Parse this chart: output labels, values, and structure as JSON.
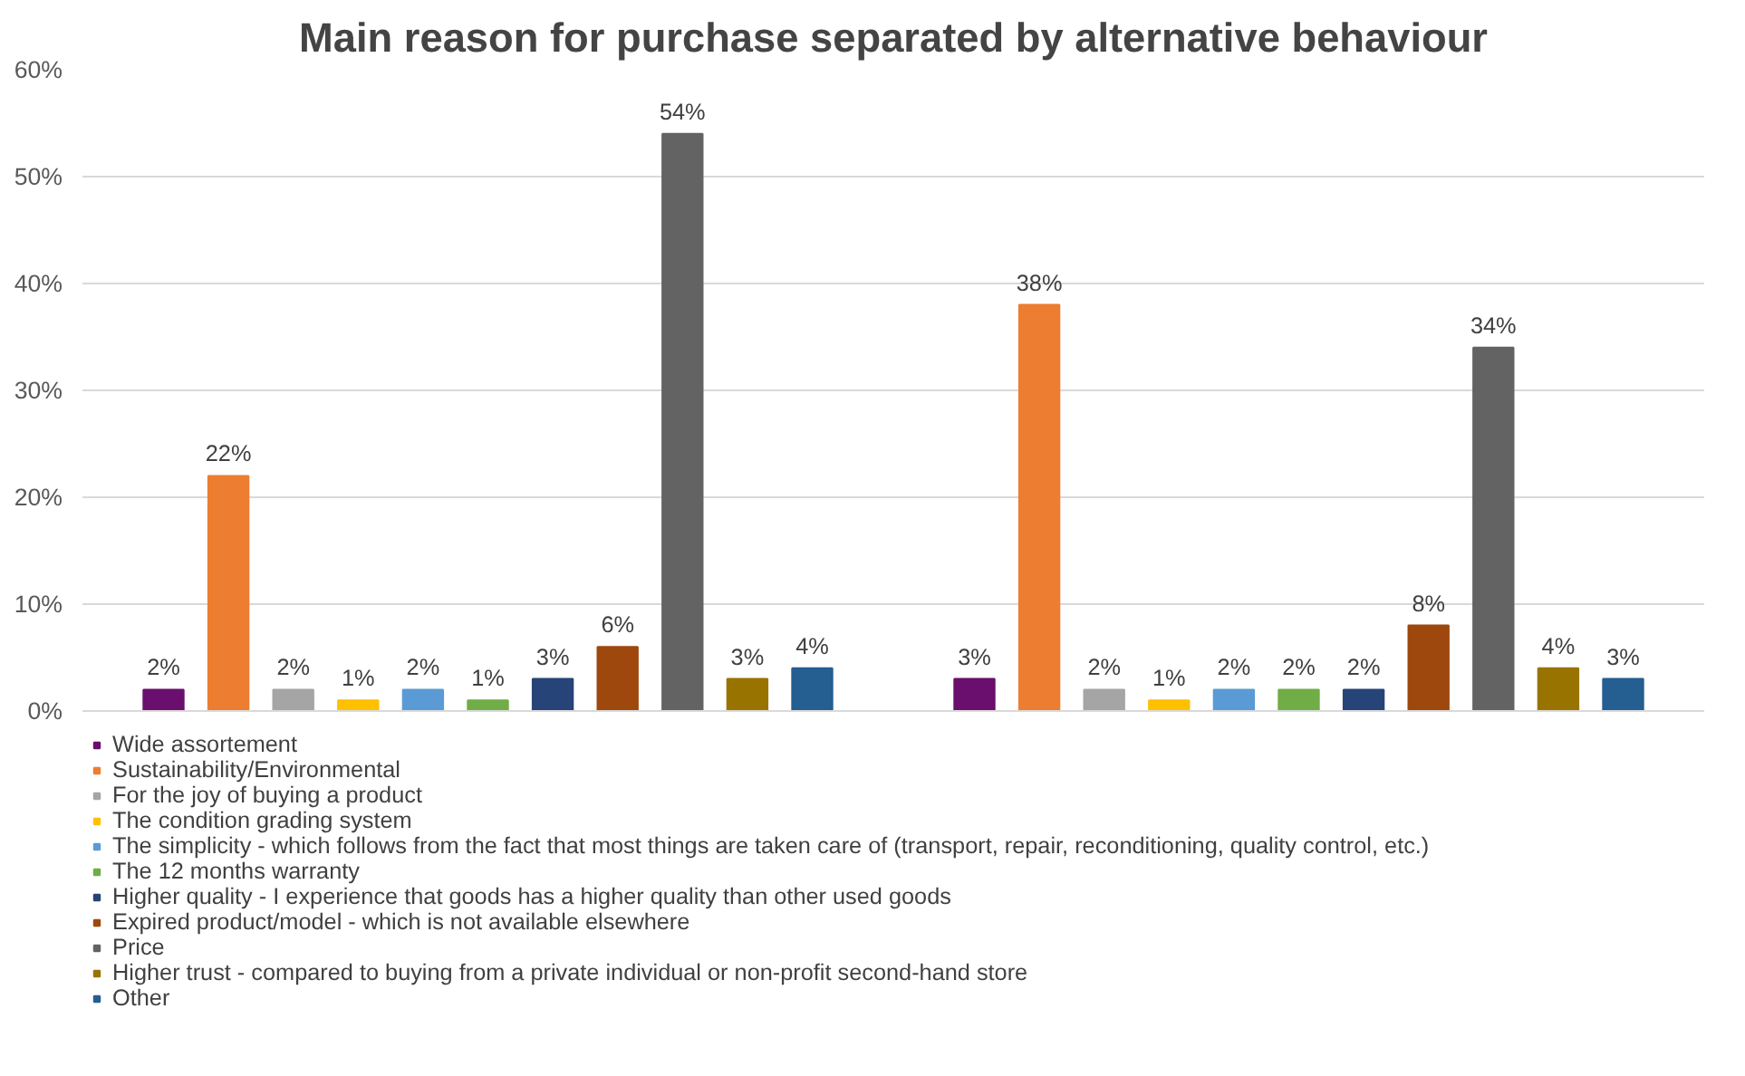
{
  "chart_data": {
    "type": "bar",
    "title": "Main reason for purchase separated by alternative behaviour",
    "categories": [
      null,
      null
    ],
    "series": [
      {
        "name": "Wide assortement",
        "color": "#6a0f6e",
        "values": [
          2,
          3
        ],
        "value_labels": [
          "2%",
          "3%"
        ]
      },
      {
        "name": "Sustainability/Environmental",
        "color": "#ed7d31",
        "values": [
          22,
          38
        ],
        "value_labels": [
          "22%",
          "38%"
        ]
      },
      {
        "name": "For the joy of buying a product",
        "color": "#a5a5a5",
        "values": [
          2,
          2
        ],
        "value_labels": [
          "2%",
          "2%"
        ]
      },
      {
        "name": "The condition grading system",
        "color": "#ffc000",
        "values": [
          1,
          1
        ],
        "value_labels": [
          "1%",
          "1%"
        ]
      },
      {
        "name": "The simplicity - which follows from the fact that most things are taken care of (transport, repair, reconditioning, quality control, etc.)",
        "color": "#5b9bd5",
        "values": [
          2,
          2
        ],
        "value_labels": [
          "2%",
          "2%"
        ]
      },
      {
        "name": "The 12 months warranty",
        "color": "#70ad47",
        "values": [
          1,
          2
        ],
        "value_labels": [
          "1%",
          "2%"
        ]
      },
      {
        "name": "Higher quality - I experience that goods has a higher quality than other used goods",
        "color": "#264478",
        "values": [
          3,
          2
        ],
        "value_labels": [
          "3%",
          "2%"
        ]
      },
      {
        "name": "Expired product/model - which is not available elsewhere",
        "color": "#9e480e",
        "values": [
          6,
          8
        ],
        "value_labels": [
          "6%",
          "8%"
        ]
      },
      {
        "name": "Price",
        "color": "#636363",
        "values": [
          54,
          34
        ],
        "value_labels": [
          "54%",
          "34%"
        ]
      },
      {
        "name": "Higher trust - compared to buying from a private individual or non-profit second-hand store",
        "color": "#997300",
        "values": [
          3,
          4
        ],
        "value_labels": [
          "3%",
          "4%"
        ]
      },
      {
        "name": "Other",
        "color": "#255e91",
        "values": [
          4,
          3
        ],
        "value_labels": [
          "4%",
          "3%"
        ]
      }
    ],
    "ylim": [
      0,
      60
    ],
    "yticks": [
      {
        "value": 0,
        "label": "0%"
      },
      {
        "value": 10,
        "label": "10%"
      },
      {
        "value": 20,
        "label": "20%"
      },
      {
        "value": 30,
        "label": "30%"
      },
      {
        "value": 40,
        "label": "40%"
      },
      {
        "value": 50,
        "label": "50%"
      },
      {
        "value": 60,
        "label": "60%"
      }
    ],
    "grid": "y",
    "legend": "bottom"
  }
}
